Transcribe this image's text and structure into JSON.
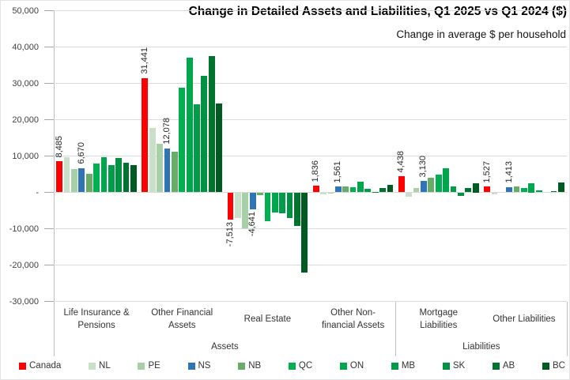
{
  "chart_data": {
    "type": "bar",
    "title": "Change in Detailed Assets and Liabilities, Q1 2025 vs Q1 2024 ($)",
    "subtitle": "Change in average $ per household",
    "xlabel": "",
    "ylabel": "",
    "ylim": [
      -30000,
      50000
    ],
    "y_step": 10000,
    "y_tick_labels": [
      "50,000",
      "40,000",
      "30,000",
      "20,000",
      "10,000",
      "-",
      "-10,000",
      "-20,000",
      "-30,000"
    ],
    "grid": true,
    "legend_position": "bottom",
    "categories": [
      "Life Insurance &\nPensions",
      "Other Financial\nAssets",
      "Real Estate",
      "Other Non-\nfinancial Assets",
      "Mortgage\nLiabilities",
      "Other Liabilities"
    ],
    "category_groups": [
      {
        "label": "Assets",
        "span": 4
      },
      {
        "label": "Liabilities",
        "span": 2
      }
    ],
    "series": [
      {
        "name": "Canada",
        "color": "#FF0000",
        "values": [
          8485,
          31441,
          -7513,
          1836,
          4438,
          1527
        ],
        "labels": [
          "8,485",
          "31,441",
          "-7,513",
          "1,836",
          "4,438",
          "1,527"
        ]
      },
      {
        "name": "NL",
        "color": "#C7E0C7",
        "values": [
          9600,
          17800,
          -7100,
          -500,
          -1200,
          -650
        ]
      },
      {
        "name": "PE",
        "color": "#A8D0A8",
        "values": [
          6400,
          13300,
          -9900,
          -350,
          1200,
          0
        ]
      },
      {
        "name": "NS",
        "color": "#2E75B6",
        "values": [
          6670,
          12078,
          -4641,
          1561,
          3130,
          1413
        ],
        "labels": [
          "6,670",
          "12,078",
          "-4,641",
          "1,561",
          "3,130",
          "1,413"
        ]
      },
      {
        "name": "NB",
        "color": "#67AD67",
        "values": [
          5100,
          11100,
          -800,
          1700,
          4100,
          1700
        ]
      },
      {
        "name": "QC",
        "color": "#00B050",
        "values": [
          8000,
          28700,
          -8000,
          1450,
          4900,
          1100
        ]
      },
      {
        "name": "ON",
        "color": "#00A64C",
        "values": [
          9700,
          37100,
          -5500,
          2900,
          6700,
          2500
        ]
      },
      {
        "name": "MB",
        "color": "#009C48",
        "values": [
          7600,
          24200,
          -5800,
          950,
          1700,
          650
        ]
      },
      {
        "name": "SK",
        "color": "#009142",
        "values": [
          9400,
          32100,
          -7100,
          200,
          -900,
          0
        ]
      },
      {
        "name": "AB",
        "color": "#00742F",
        "values": [
          8100,
          37600,
          -9300,
          1300,
          1300,
          400
        ]
      },
      {
        "name": "BC",
        "color": "#005B23",
        "values": [
          7400,
          24400,
          -22000,
          2000,
          2500,
          2700
        ]
      }
    ]
  }
}
